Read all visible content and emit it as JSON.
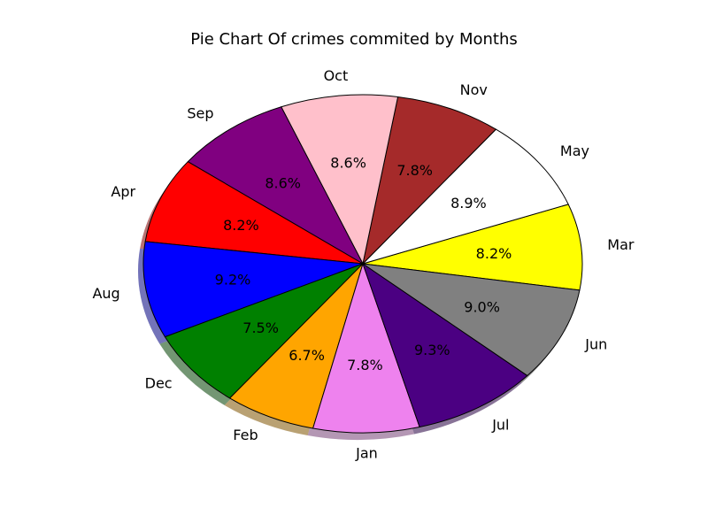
{
  "chart_data": {
    "type": "pie",
    "title": "Pie Chart Of crimes commited by Months",
    "slices": [
      {
        "label": "Mar",
        "value": 8.2,
        "pct_label": "8.2%",
        "color": "#ffff00"
      },
      {
        "label": "May",
        "value": 8.9,
        "pct_label": "8.9%",
        "color": "#ffffff"
      },
      {
        "label": "Nov",
        "value": 7.8,
        "pct_label": "7.8%",
        "color": "#a52a2a"
      },
      {
        "label": "Oct",
        "value": 8.6,
        "pct_label": "8.6%",
        "color": "#ffc0cb"
      },
      {
        "label": "Sep",
        "value": 8.6,
        "pct_label": "8.6%",
        "color": "#800080"
      },
      {
        "label": "Apr",
        "value": 8.2,
        "pct_label": "8.2%",
        "color": "#ff0000"
      },
      {
        "label": "Aug",
        "value": 9.2,
        "pct_label": "9.2%",
        "color": "#0000ff"
      },
      {
        "label": "Dec",
        "value": 7.5,
        "pct_label": "7.5%",
        "color": "#008000"
      },
      {
        "label": "Feb",
        "value": 6.7,
        "pct_label": "6.7%",
        "color": "#ffa500"
      },
      {
        "label": "Jan",
        "value": 7.8,
        "pct_label": "7.8%",
        "color": "#ee82ee"
      },
      {
        "label": "Jul",
        "value": 9.3,
        "pct_label": "9.3%",
        "color": "#4b0082"
      },
      {
        "label": "Jun",
        "value": 9.0,
        "pct_label": "9.0%",
        "color": "#808080"
      }
    ],
    "shadow": true,
    "edge_color": "#000000"
  }
}
